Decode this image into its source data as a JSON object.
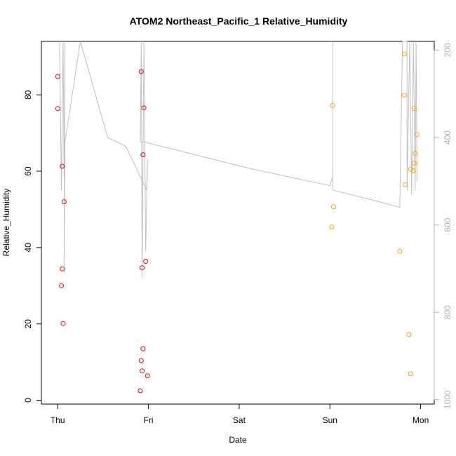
{
  "chart_data": {
    "type": "scatter",
    "title": "ATOM2 Northeast_Pacific_1 Relative_Humidity",
    "xlabel": "Date",
    "ylabel": "Relative_Humidity",
    "x_ticks": [
      "Thu",
      "Fri",
      "Sat",
      "Sun",
      "Mon"
    ],
    "y_ticks": [
      0,
      20,
      40,
      60,
      80
    ],
    "y_right_ticks": [
      200,
      400,
      600,
      800,
      1000
    ],
    "xlim": [
      -0.18,
      4.15
    ],
    "ylim": [
      -1,
      94
    ],
    "y_right_lim": [
      180,
      1010
    ],
    "y_right_reversed": true,
    "grid": false,
    "colors": {
      "series_red": "#ff0000",
      "series_orange": "#ffa500",
      "track_line": "#c0c0c0",
      "right_axis": "#b0b0b0",
      "axis": "#000000"
    },
    "series": [
      {
        "color": "#ff0000",
        "points": [
          {
            "x": 0.0,
            "y": 84.8
          },
          {
            "x": 0.0,
            "y": 76.4
          },
          {
            "x": 0.05,
            "y": 61.3
          },
          {
            "x": 0.07,
            "y": 52.0
          },
          {
            "x": 0.05,
            "y": 34.4
          },
          {
            "x": 0.04,
            "y": 30.0
          },
          {
            "x": 0.06,
            "y": 20.1
          },
          {
            "x": 0.92,
            "y": 86.1
          },
          {
            "x": 0.95,
            "y": 76.6
          },
          {
            "x": 0.94,
            "y": 64.3
          },
          {
            "x": 0.97,
            "y": 36.4
          },
          {
            "x": 0.93,
            "y": 34.7
          },
          {
            "x": 0.94,
            "y": 13.5
          },
          {
            "x": 0.92,
            "y": 10.4
          },
          {
            "x": 0.93,
            "y": 7.7
          },
          {
            "x": 0.99,
            "y": 6.4
          },
          {
            "x": 0.91,
            "y": 2.5
          }
        ]
      },
      {
        "color": "#ffa500",
        "points": [
          {
            "x": 3.03,
            "y": 77.2
          },
          {
            "x": 3.04,
            "y": 50.7
          },
          {
            "x": 3.02,
            "y": 45.4
          },
          {
            "x": 3.82,
            "y": 90.7
          },
          {
            "x": 3.82,
            "y": 79.9
          },
          {
            "x": 3.93,
            "y": 76.4
          },
          {
            "x": 3.96,
            "y": 69.6
          },
          {
            "x": 3.94,
            "y": 64.7
          },
          {
            "x": 3.93,
            "y": 62.1
          },
          {
            "x": 3.89,
            "y": 60.5
          },
          {
            "x": 3.92,
            "y": 60.1
          },
          {
            "x": 3.83,
            "y": 56.5
          },
          {
            "x": 3.77,
            "y": 39.0
          },
          {
            "x": 3.87,
            "y": 17.2
          },
          {
            "x": 3.89,
            "y": 6.9
          }
        ]
      }
    ],
    "track_line": {
      "color": "#c0c0c0",
      "axis": "right",
      "points": [
        {
          "x": 0.02,
          "y": 180
        },
        {
          "x": 0.04,
          "y": 520
        },
        {
          "x": 0.06,
          "y": 180
        },
        {
          "x": 0.07,
          "y": 490
        },
        {
          "x": 0.08,
          "y": 180
        },
        {
          "x": 0.07,
          "y": 710
        },
        {
          "x": 0.08,
          "y": 460
        },
        {
          "x": 0.08,
          "y": 410
        },
        {
          "x": 0.25,
          "y": 180
        },
        {
          "x": 0.4,
          "y": 290
        },
        {
          "x": 0.55,
          "y": 400
        },
        {
          "x": 0.75,
          "y": 420
        },
        {
          "x": 0.98,
          "y": 520
        },
        {
          "x": 0.99,
          "y": 450
        },
        {
          "x": 0.97,
          "y": 660
        },
        {
          "x": 0.95,
          "y": 180
        },
        {
          "x": 0.93,
          "y": 720
        },
        {
          "x": 0.92,
          "y": 180
        },
        {
          "x": 0.91,
          "y": 410
        },
        {
          "x": 0.95,
          "y": 410
        },
        {
          "x": 2.1,
          "y": 470
        },
        {
          "x": 3.0,
          "y": 510
        },
        {
          "x": 3.03,
          "y": 490
        },
        {
          "x": 3.03,
          "y": 180
        },
        {
          "x": 3.03,
          "y": 520
        },
        {
          "x": 3.6,
          "y": 550
        },
        {
          "x": 3.77,
          "y": 560
        },
        {
          "x": 3.8,
          "y": 180
        },
        {
          "x": 3.85,
          "y": 180
        },
        {
          "x": 3.85,
          "y": 520
        },
        {
          "x": 3.88,
          "y": 180
        },
        {
          "x": 3.9,
          "y": 530
        },
        {
          "x": 3.92,
          "y": 180
        },
        {
          "x": 3.94,
          "y": 520
        },
        {
          "x": 3.95,
          "y": 180
        },
        {
          "x": 3.96,
          "y": 500
        }
      ]
    }
  }
}
